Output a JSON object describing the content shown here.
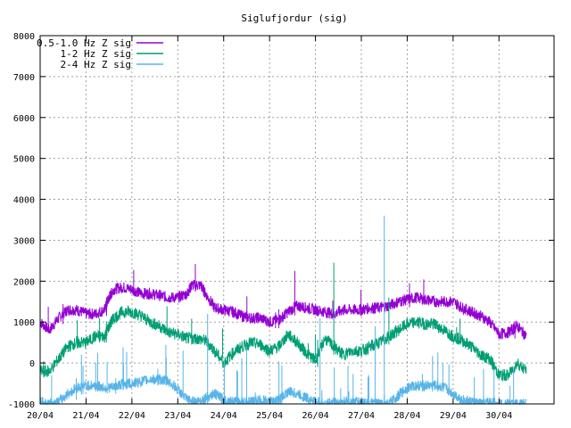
{
  "chart_data": {
    "type": "line",
    "title": "Siglufjordur (sig)",
    "xlabel": "",
    "ylabel": "",
    "ylim": [
      -1000,
      8000
    ],
    "y_ticks": [
      -1000,
      0,
      1000,
      2000,
      3000,
      4000,
      5000,
      6000,
      7000,
      8000
    ],
    "x_ticks": [
      "20/04",
      "21/04",
      "22/04",
      "23/04",
      "24/04",
      "25/04",
      "26/04",
      "27/04",
      "28/04",
      "29/04",
      "30/04"
    ],
    "xlim": [
      0,
      11.2
    ],
    "grid": true,
    "legend_position": "top-left",
    "series": [
      {
        "name": "0.5-1.0 Hz Z sig",
        "color": "#9400d3",
        "x": [
          0.0,
          0.2,
          0.4,
          0.6,
          0.8,
          1.0,
          1.2,
          1.4,
          1.5,
          1.6,
          1.8,
          2.0,
          2.2,
          2.4,
          2.6,
          2.8,
          3.0,
          3.2,
          3.3,
          3.5,
          3.6,
          3.8,
          4.0,
          4.2,
          4.4,
          4.6,
          4.8,
          5.0,
          5.2,
          5.4,
          5.6,
          5.8,
          6.0,
          6.2,
          6.4,
          6.6,
          6.8,
          7.0,
          7.2,
          7.4,
          7.6,
          7.8,
          8.0,
          8.2,
          8.4,
          8.6,
          8.8,
          9.0,
          9.2,
          9.4,
          9.6,
          9.8,
          10.0,
          10.2,
          10.4,
          10.6
        ],
        "y": [
          1000,
          800,
          1100,
          1300,
          1300,
          1200,
          1200,
          1300,
          1600,
          1800,
          1850,
          1800,
          1700,
          1700,
          1650,
          1600,
          1600,
          1700,
          1900,
          1900,
          1700,
          1350,
          1300,
          1250,
          1150,
          1100,
          1100,
          1000,
          1050,
          1250,
          1400,
          1350,
          1300,
          1250,
          1200,
          1300,
          1300,
          1300,
          1350,
          1350,
          1400,
          1500,
          1550,
          1600,
          1550,
          1500,
          1500,
          1500,
          1350,
          1250,
          1150,
          1000,
          700,
          750,
          900,
          650
        ]
      },
      {
        "name": "1-2 Hz Z sig",
        "color": "#009e73",
        "x": [
          0.0,
          0.2,
          0.4,
          0.6,
          0.8,
          1.0,
          1.2,
          1.4,
          1.5,
          1.6,
          1.8,
          2.0,
          2.2,
          2.4,
          2.6,
          2.8,
          3.0,
          3.2,
          3.4,
          3.6,
          3.8,
          4.0,
          4.2,
          4.4,
          4.6,
          4.8,
          5.0,
          5.2,
          5.4,
          5.6,
          5.8,
          6.0,
          6.2,
          6.4,
          6.6,
          6.8,
          7.0,
          7.2,
          7.4,
          7.6,
          7.8,
          8.0,
          8.2,
          8.4,
          8.6,
          8.8,
          9.0,
          9.2,
          9.4,
          9.6,
          9.8,
          10.0,
          10.2,
          10.4,
          10.6
        ],
        "y": [
          -200,
          -200,
          100,
          400,
          500,
          500,
          650,
          650,
          900,
          1100,
          1250,
          1250,
          1150,
          1000,
          900,
          750,
          700,
          600,
          600,
          550,
          300,
          0,
          250,
          400,
          500,
          450,
          300,
          400,
          700,
          500,
          250,
          50,
          600,
          400,
          200,
          300,
          300,
          400,
          500,
          650,
          800,
          950,
          1000,
          950,
          950,
          800,
          650,
          550,
          400,
          200,
          100,
          -300,
          -300,
          0,
          -200
        ]
      },
      {
        "name": "2-4 Hz Z sig",
        "color": "#56b4e9",
        "x": [
          0.0,
          0.2,
          0.4,
          0.6,
          0.8,
          1.0,
          1.2,
          1.4,
          1.6,
          1.8,
          2.0,
          2.2,
          2.4,
          2.6,
          2.8,
          3.0,
          3.2,
          3.4,
          3.6,
          3.8,
          4.0,
          4.2,
          4.4,
          4.6,
          4.8,
          5.0,
          5.2,
          5.4,
          5.6,
          5.8,
          6.0,
          6.2,
          6.4,
          6.6,
          6.8,
          7.0,
          7.2,
          7.4,
          7.6,
          7.8,
          8.0,
          8.2,
          8.4,
          8.6,
          8.8,
          9.0,
          9.2,
          9.4,
          9.6,
          9.8,
          10.0,
          10.2,
          10.4,
          10.6
        ],
        "y": [
          -950,
          -1000,
          -950,
          -750,
          -600,
          -550,
          -550,
          -600,
          -600,
          -500,
          -500,
          -450,
          -400,
          -400,
          -450,
          -650,
          -900,
          -950,
          -850,
          -750,
          -900,
          -950,
          -950,
          -950,
          -900,
          -950,
          -900,
          -700,
          -750,
          -850,
          -950,
          -1000,
          -950,
          -950,
          -950,
          -950,
          -1000,
          -1000,
          -1000,
          -800,
          -600,
          -550,
          -550,
          -550,
          -600,
          -750,
          -900,
          -950,
          -1000,
          -950,
          -1000,
          -1000,
          -1000,
          -1000
        ]
      }
    ],
    "spikes": [
      {
        "series": "0.5-1.0 Hz Z sig",
        "x": 5.55,
        "y": 2250
      },
      {
        "series": "0.5-1.0 Hz Z sig",
        "x": 8.05,
        "y": 1950
      },
      {
        "series": "1-2 Hz Z sig",
        "x": 6.4,
        "y": 2450
      },
      {
        "series": "1-2 Hz Z sig",
        "x": 7.6,
        "y": 1600
      },
      {
        "series": "2-4 Hz Z sig",
        "x": 7.5,
        "y": 3600
      },
      {
        "series": "2-4 Hz Z sig",
        "x": 6.1,
        "y": 1100
      },
      {
        "series": "2-4 Hz Z sig",
        "x": 3.65,
        "y": 1200
      },
      {
        "series": "2-4 Hz Z sig",
        "x": 7.3,
        "y": 900
      },
      {
        "series": "2-4 Hz Z sig",
        "x": 0.9,
        "y": 200
      },
      {
        "series": "2-4 Hz Z sig",
        "x": 4.5,
        "y": 400
      }
    ]
  }
}
